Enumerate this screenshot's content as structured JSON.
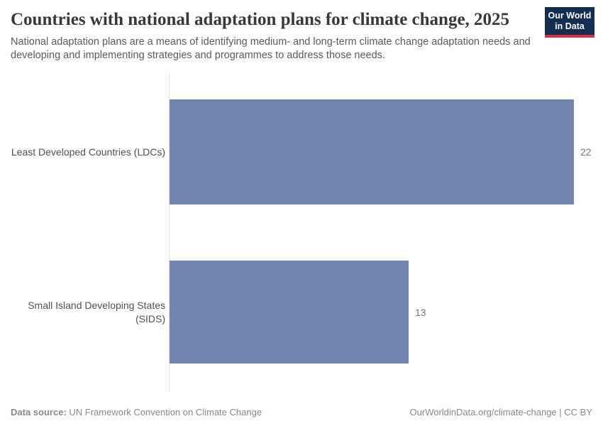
{
  "header": {
    "title": "Countries with national adaptation plans for climate change, 2025",
    "subtitle": "National adaptation plans are a means of identifying medium- and long-term climate change adaptation needs and developing and implementing strategies and programmes to address those needs.",
    "logo": {
      "line1": "Our World",
      "line2": "in Data"
    }
  },
  "chart_data": {
    "type": "bar",
    "orientation": "horizontal",
    "title": "Countries with national adaptation plans for climate change, 2025",
    "categories": [
      "Least Developed Countries (LDCs)",
      "Small Island Developing States (SIDS)"
    ],
    "values": [
      22,
      13
    ],
    "xlabel": "",
    "ylabel": "",
    "xlim": [
      0,
      22
    ],
    "grid": false,
    "legend": false,
    "bar_color": "#7086af"
  },
  "footer": {
    "datasource_label": "Data source:",
    "datasource_value": "UN Framework Convention on Climate Change",
    "credit": "OurWorldinData.org/climate-change | CC BY"
  },
  "colors": {
    "bar": "#7086af",
    "logo_navy": "#132e52",
    "logo_red": "#d8313c",
    "axis": "#e2e2e2"
  }
}
